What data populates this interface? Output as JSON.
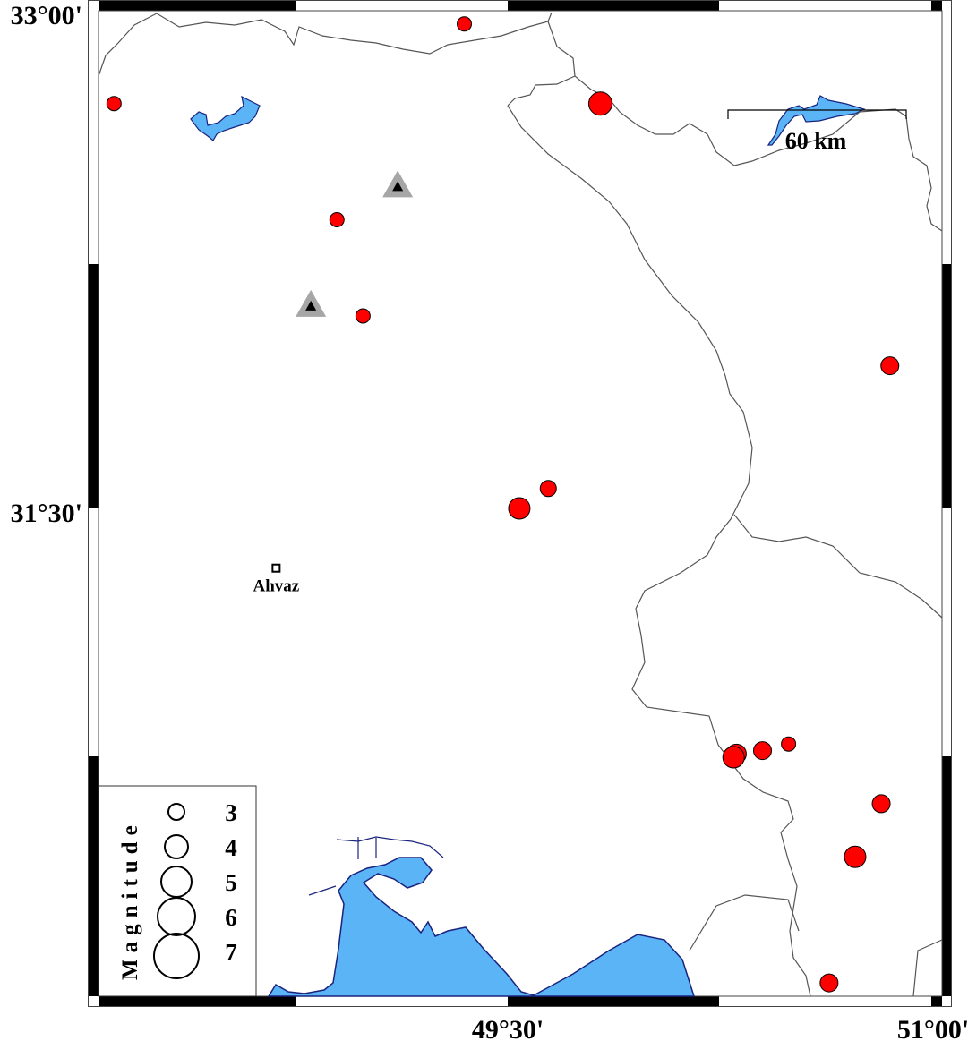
{
  "map": {
    "projection_extent": {
      "lon_min": 48.086,
      "lon_max": 51.0,
      "lat_min": 30.03,
      "lat_max": 33.0
    },
    "axis_labels": {
      "lat_top": "33°00'",
      "lat_mid": "31°30'",
      "lon_mid": "49°30'",
      "lon_right": "51°00'"
    },
    "colors": {
      "earthquake": "#ff0000",
      "water": "#5ab4f5",
      "water_outline": "#1a237e",
      "station": "#000000",
      "station_halo": "#a6a6a6",
      "border": "#555555"
    },
    "scale_bar": {
      "label": "60 km"
    },
    "cities": [
      {
        "name": "Ahvaz",
        "lon": 48.7,
        "lat": 31.32,
        "symbol": "square"
      }
    ],
    "stations": [
      {
        "lon": 49.12,
        "lat": 32.47,
        "symbol": "triangle"
      },
      {
        "lon": 48.82,
        "lat": 32.11,
        "symbol": "triangle"
      }
    ],
    "earthquakes": [
      {
        "lon": 49.35,
        "lat": 32.96,
        "mag": 2.5
      },
      {
        "lon": 48.14,
        "lat": 32.72,
        "mag": 2.5
      },
      {
        "lon": 49.82,
        "lat": 32.72,
        "mag": 3.75
      },
      {
        "lon": 48.91,
        "lat": 32.37,
        "mag": 2.5
      },
      {
        "lon": 49.0,
        "lat": 32.08,
        "mag": 2.5
      },
      {
        "lon": 50.82,
        "lat": 31.93,
        "mag": 3.0
      },
      {
        "lon": 49.64,
        "lat": 31.56,
        "mag": 2.75
      },
      {
        "lon": 49.54,
        "lat": 31.5,
        "mag": 3.5
      },
      {
        "lon": 50.29,
        "lat": 30.76,
        "mag": 3.25
      },
      {
        "lon": 50.28,
        "lat": 30.75,
        "mag": 3.5
      },
      {
        "lon": 50.38,
        "lat": 30.77,
        "mag": 3.0
      },
      {
        "lon": 50.47,
        "lat": 30.79,
        "mag": 2.5
      },
      {
        "lon": 50.79,
        "lat": 30.61,
        "mag": 3.0
      },
      {
        "lon": 50.7,
        "lat": 30.45,
        "mag": 3.5
      },
      {
        "lon": 50.61,
        "lat": 30.07,
        "mag": 3.0
      }
    ],
    "legend": {
      "title": "Magnitude",
      "items": [
        {
          "mag": 3,
          "label": "3"
        },
        {
          "mag": 4,
          "label": "4"
        },
        {
          "mag": 5,
          "label": "5"
        },
        {
          "mag": 6,
          "label": "6"
        },
        {
          "mag": 7,
          "label": "7"
        }
      ]
    }
  }
}
